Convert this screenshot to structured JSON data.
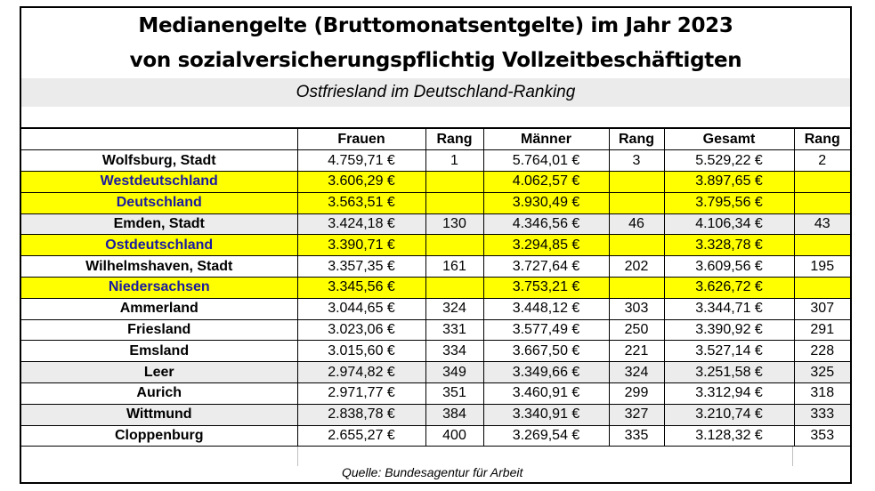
{
  "title_line1": "Medianengelte (Bruttomonatsentgelte) im Jahr 2023",
  "title_line2": "von sozialversicherungspflichtig Vollzeitbeschäftigten",
  "subtitle": "Ostfriesland im Deutschland-Ranking",
  "columns": [
    "",
    "Frauen",
    "Rang",
    "Männer",
    "Rang",
    "Gesamt",
    "Rang"
  ],
  "rows": [
    {
      "name": "Wolfsburg, Stadt",
      "frauen": "4.759,71 €",
      "rang_f": "1",
      "maenner": "5.764,01 €",
      "rang_m": "3",
      "gesamt": "5.529,22 €",
      "rang_g": "2"
    },
    {
      "name": "Westdeutschland",
      "frauen": "3.606,29 €",
      "rang_f": "",
      "maenner": "4.062,57 €",
      "rang_m": "",
      "gesamt": "3.897,65 €",
      "rang_g": ""
    },
    {
      "name": "Deutschland",
      "frauen": "3.563,51 €",
      "rang_f": "",
      "maenner": "3.930,49 €",
      "rang_m": "",
      "gesamt": "3.795,56 €",
      "rang_g": ""
    },
    {
      "name": "Emden, Stadt",
      "frauen": "3.424,18 €",
      "rang_f": "130",
      "maenner": "4.346,56 €",
      "rang_m": "46",
      "gesamt": "4.106,34 €",
      "rang_g": "43"
    },
    {
      "name": "Ostdeutschland",
      "frauen": "3.390,71 €",
      "rang_f": "",
      "maenner": "3.294,85 €",
      "rang_m": "",
      "gesamt": "3.328,78 €",
      "rang_g": ""
    },
    {
      "name": "Wilhelmshaven, Stadt",
      "frauen": "3.357,35 €",
      "rang_f": "161",
      "maenner": "3.727,64 €",
      "rang_m": "202",
      "gesamt": "3.609,56 €",
      "rang_g": "195"
    },
    {
      "name": "Niedersachsen",
      "frauen": "3.345,56 €",
      "rang_f": "",
      "maenner": "3.753,21 €",
      "rang_m": "",
      "gesamt": "3.626,72 €",
      "rang_g": ""
    },
    {
      "name": "Ammerland",
      "frauen": "3.044,65 €",
      "rang_f": "324",
      "maenner": "3.448,12 €",
      "rang_m": "303",
      "gesamt": "3.344,71 €",
      "rang_g": "307"
    },
    {
      "name": "Friesland",
      "frauen": "3.023,06 €",
      "rang_f": "331",
      "maenner": "3.577,49 €",
      "rang_m": "250",
      "gesamt": "3.390,92 €",
      "rang_g": "291"
    },
    {
      "name": "Emsland",
      "frauen": "3.015,60 €",
      "rang_f": "334",
      "maenner": "3.667,50 €",
      "rang_m": "221",
      "gesamt": "3.527,14 €",
      "rang_g": "228"
    },
    {
      "name": "Leer",
      "frauen": "2.974,82 €",
      "rang_f": "349",
      "maenner": "3.349,66 €",
      "rang_m": "324",
      "gesamt": "3.251,58 €",
      "rang_g": "325"
    },
    {
      "name": "Aurich",
      "frauen": "2.971,77 €",
      "rang_f": "351",
      "maenner": "3.460,91 €",
      "rang_m": "299",
      "gesamt": "3.312,94 €",
      "rang_g": "318"
    },
    {
      "name": "Wittmund",
      "frauen": "2.838,78 €",
      "rang_f": "384",
      "maenner": "3.340,91 €",
      "rang_m": "327",
      "gesamt": "3.210,74 €",
      "rang_g": "333"
    },
    {
      "name": "Cloppenburg",
      "frauen": "2.655,27 €",
      "rang_f": "400",
      "maenner": "3.269,54 €",
      "rang_m": "335",
      "gesamt": "3.128,32 €",
      "rang_g": "353"
    }
  ],
  "highlight_rows": [
    1,
    2,
    4,
    6
  ],
  "gray_rows": [
    3,
    10,
    12
  ],
  "colors": {
    "highlight": "#ffff00",
    "highlight_text": "#1a1aa0",
    "gray": "#ececec"
  },
  "source": "Quelle: Bundesagentur für Arbeit"
}
